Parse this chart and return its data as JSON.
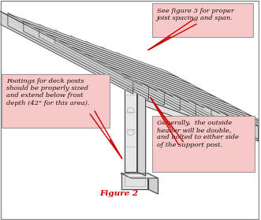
{
  "bg_color": "#ffffff",
  "line_color": "#888888",
  "dark_line": "#444444",
  "figure_label": "Figure 2",
  "annotation1_text": "See figure 3 for proper\njoist spacing and span.",
  "annotation2_text": "Footings for deck posts\nshould be properly sized\nand extend below frost\ndepth (42\" for this area).",
  "annotation3_text": "Generally,  the outside\nheader will be double,\nand bolted to either side\nof the support post.",
  "arrow_color": "#cc0000",
  "box_face_color": "#f8c8c8",
  "box_edge_color": "#999999",
  "font_size": 6.0,
  "title_font_size": 7.5,
  "title_color": "#cc0000",
  "joist_fill": "#e8e8e8",
  "joist_top": "#f0f0f0",
  "beam_fill": "#d8d8d8",
  "post_fill": "#e0e0e0",
  "foot_fill": "#e4e4e4"
}
